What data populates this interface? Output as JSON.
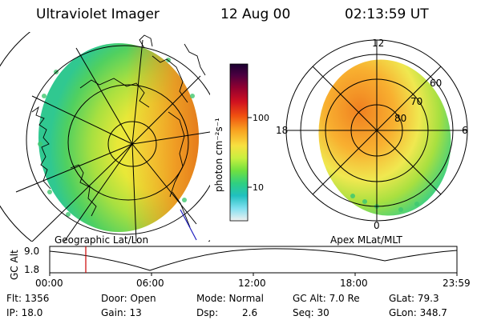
{
  "header": {
    "title": "Ultraviolet Imager",
    "date": "12 Aug 00",
    "time": "02:13:59 UT"
  },
  "left_panel": {
    "label": "Geographic Lat/Lon"
  },
  "right_panel": {
    "label": "Apex MLat/MLT",
    "mlt_labels": [
      "12",
      "18",
      "6",
      "0"
    ],
    "lat_labels": [
      "60",
      "70",
      "80"
    ]
  },
  "colorbar": {
    "unit_label": "photon cm⁻²s⁻¹",
    "ticks": [
      "100",
      "10"
    ],
    "colors": [
      "#1a0030",
      "#4a0040",
      "#900030",
      "#d01020",
      "#f05010",
      "#f8a020",
      "#f8e040",
      "#c8f040",
      "#70e040",
      "#30d080",
      "#20c0c0",
      "#80e0f0",
      "#f0f0f0"
    ]
  },
  "altitude_plot": {
    "ylabel": "GC Alt",
    "y_ticks": [
      "9.0",
      "1.8"
    ],
    "x_ticks": [
      "00:00",
      "06:00",
      "12:00",
      "18:00",
      "23:59"
    ],
    "marker_color": "#cc0000"
  },
  "info": {
    "flt": "Flt: 1356",
    "ip": "IP: 18.0",
    "door": "Door: Open",
    "gain": "Gain: 13",
    "mode": "Mode: Normal",
    "dsp_label": "Dsp:",
    "dsp_value": "2.6",
    "gc_alt": "GC Alt: 7.0 Re",
    "seq": "Seq: 30",
    "glat": "GLat:  79.3",
    "glon": "GLon: 348.7"
  }
}
